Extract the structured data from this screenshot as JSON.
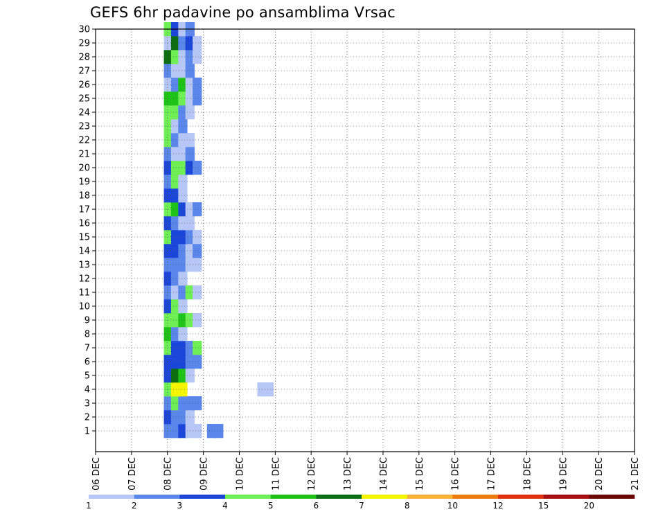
{
  "chart_data": {
    "type": "heatmap",
    "title": "GEFS 6hr padavine po ansamblima Vrsac",
    "x_ticks": [
      "06 DEC",
      "07 DEC",
      "08 DEC",
      "09 DEC",
      "10 DEC",
      "11 DEC",
      "12 DEC",
      "13 DEC",
      "14 DEC",
      "15 DEC",
      "16 DEC",
      "17 DEC",
      "18 DEC",
      "19 DEC",
      "20 DEC",
      "21 DEC"
    ],
    "y_ticks": [
      "1",
      "2",
      "3",
      "4",
      "5",
      "6",
      "7",
      "8",
      "9",
      "10",
      "11",
      "12",
      "13",
      "14",
      "15",
      "16",
      "17",
      "18",
      "19",
      "20",
      "21",
      "22",
      "23",
      "24",
      "25",
      "26",
      "27",
      "28",
      "29",
      "30"
    ],
    "x_range": [
      "06 DEC",
      "21 DEC"
    ],
    "y_range": [
      0,
      30
    ],
    "time_step_hours": 6,
    "grid": true,
    "colorbar": {
      "labels": [
        "1",
        "2",
        "3",
        "4",
        "5",
        "6",
        "7",
        "8",
        "10",
        "12",
        "15",
        "20"
      ],
      "colors": [
        "#b7c7f5",
        "#5b87ea",
        "#1c46d8",
        "#6fee55",
        "#1fc218",
        "#0c6e10",
        "#f5f500",
        "#f7b338",
        "#ef7a0d",
        "#e03010",
        "#a8100e",
        "#6b0808"
      ]
    },
    "cells": [
      [
        1,
        1.9,
        1
      ],
      [
        1,
        2.1,
        1
      ],
      [
        1,
        2.3,
        2
      ],
      [
        1,
        2.5,
        0
      ],
      [
        1,
        2.7,
        0
      ],
      [
        1,
        3.1,
        1
      ],
      [
        1,
        3.3,
        1
      ],
      [
        2,
        1.9,
        2
      ],
      [
        2,
        2.1,
        1
      ],
      [
        2,
        2.3,
        1
      ],
      [
        2,
        2.5,
        0
      ],
      [
        3,
        1.9,
        1
      ],
      [
        3,
        2.1,
        3
      ],
      [
        3,
        2.3,
        1
      ],
      [
        3,
        2.5,
        1
      ],
      [
        3,
        2.7,
        1
      ],
      [
        4,
        1.9,
        3
      ],
      [
        4,
        2.1,
        6
      ],
      [
        4,
        2.3,
        6
      ],
      [
        4,
        4.5,
        0
      ],
      [
        4,
        4.7,
        0
      ],
      [
        5,
        1.9,
        2
      ],
      [
        5,
        2.1,
        5
      ],
      [
        5,
        2.3,
        4
      ],
      [
        5,
        2.5,
        0
      ],
      [
        6,
        1.9,
        2
      ],
      [
        6,
        2.1,
        2
      ],
      [
        6,
        2.3,
        2
      ],
      [
        6,
        2.5,
        1
      ],
      [
        6,
        2.7,
        1
      ],
      [
        7,
        1.9,
        3
      ],
      [
        7,
        2.1,
        2
      ],
      [
        7,
        2.3,
        2
      ],
      [
        7,
        2.5,
        1
      ],
      [
        7,
        2.7,
        3
      ],
      [
        8,
        1.9,
        4
      ],
      [
        8,
        2.1,
        1
      ],
      [
        8,
        2.3,
        0
      ],
      [
        9,
        1.9,
        3
      ],
      [
        9,
        2.1,
        3
      ],
      [
        9,
        2.3,
        4
      ],
      [
        9,
        2.5,
        3
      ],
      [
        9,
        2.7,
        0
      ],
      [
        10,
        1.9,
        2
      ],
      [
        10,
        2.1,
        3
      ],
      [
        10,
        2.3,
        0
      ],
      [
        11,
        1.9,
        1
      ],
      [
        11,
        2.1,
        0
      ],
      [
        11,
        2.3,
        1
      ],
      [
        11,
        2.5,
        3
      ],
      [
        11,
        2.7,
        0
      ],
      [
        12,
        1.9,
        2
      ],
      [
        12,
        2.1,
        1
      ],
      [
        12,
        2.3,
        0
      ],
      [
        13,
        1.9,
        1
      ],
      [
        13,
        2.1,
        1
      ],
      [
        13,
        2.3,
        1
      ],
      [
        13,
        2.5,
        0
      ],
      [
        13,
        2.7,
        0
      ],
      [
        14,
        1.9,
        2
      ],
      [
        14,
        2.1,
        2
      ],
      [
        14,
        2.3,
        1
      ],
      [
        14,
        2.5,
        0
      ],
      [
        14,
        2.7,
        1
      ],
      [
        15,
        1.9,
        3
      ],
      [
        15,
        2.1,
        2
      ],
      [
        15,
        2.3,
        2
      ],
      [
        15,
        2.5,
        1
      ],
      [
        15,
        2.7,
        0
      ],
      [
        16,
        1.9,
        2
      ],
      [
        16,
        2.1,
        1
      ],
      [
        16,
        2.3,
        0
      ],
      [
        16,
        2.5,
        0
      ],
      [
        17,
        1.9,
        3
      ],
      [
        17,
        2.1,
        4
      ],
      [
        17,
        2.3,
        2
      ],
      [
        17,
        2.5,
        0
      ],
      [
        17,
        2.7,
        1
      ],
      [
        18,
        1.9,
        2
      ],
      [
        18,
        2.1,
        2
      ],
      [
        18,
        2.3,
        0
      ],
      [
        19,
        1.9,
        1
      ],
      [
        19,
        2.1,
        3
      ],
      [
        19,
        2.3,
        0
      ],
      [
        20,
        1.9,
        2
      ],
      [
        20,
        2.1,
        3
      ],
      [
        20,
        2.3,
        3
      ],
      [
        20,
        2.5,
        2
      ],
      [
        20,
        2.7,
        1
      ],
      [
        21,
        1.9,
        1
      ],
      [
        21,
        2.1,
        0
      ],
      [
        21,
        2.3,
        0
      ],
      [
        21,
        2.5,
        1
      ],
      [
        22,
        1.9,
        3
      ],
      [
        22,
        2.1,
        1
      ],
      [
        22,
        2.3,
        0
      ],
      [
        22,
        2.5,
        0
      ],
      [
        23,
        1.9,
        3
      ],
      [
        23,
        2.1,
        0
      ],
      [
        23,
        2.3,
        1
      ],
      [
        24,
        1.9,
        3
      ],
      [
        24,
        2.1,
        3
      ],
      [
        24,
        2.3,
        1
      ],
      [
        24,
        2.5,
        0
      ],
      [
        25,
        1.9,
        4
      ],
      [
        25,
        2.1,
        4
      ],
      [
        25,
        2.3,
        3
      ],
      [
        25,
        2.5,
        0
      ],
      [
        25,
        2.7,
        1
      ],
      [
        26,
        1.9,
        0
      ],
      [
        26,
        2.1,
        1
      ],
      [
        26,
        2.3,
        4
      ],
      [
        26,
        2.5,
        0
      ],
      [
        26,
        2.7,
        1
      ],
      [
        27,
        1.9,
        1
      ],
      [
        27,
        2.1,
        0
      ],
      [
        27,
        2.3,
        0
      ],
      [
        27,
        2.5,
        1
      ],
      [
        28,
        1.9,
        5
      ],
      [
        28,
        2.1,
        3
      ],
      [
        28,
        2.3,
        0
      ],
      [
        28,
        2.5,
        1
      ],
      [
        28,
        2.7,
        0
      ],
      [
        29,
        1.9,
        0
      ],
      [
        29,
        2.1,
        5
      ],
      [
        29,
        2.3,
        1
      ],
      [
        29,
        2.5,
        2
      ],
      [
        29,
        2.7,
        0
      ],
      [
        30,
        1.9,
        3
      ],
      [
        30,
        2.1,
        2
      ],
      [
        30,
        2.3,
        0
      ],
      [
        30,
        2.5,
        1
      ]
    ]
  }
}
